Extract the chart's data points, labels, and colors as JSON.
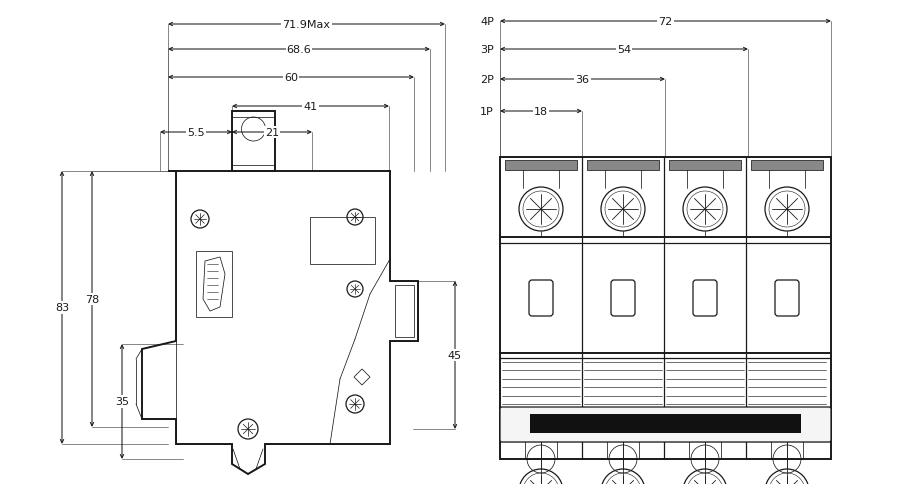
{
  "bg": "#ffffff",
  "lc": "#1a1a1a",
  "lc_dim": "#222222",
  "lc_thin": "#444444",
  "fig_w": 9.0,
  "fig_h": 4.85,
  "dpi": 100,
  "left_h_dims": [
    {
      "label": "71.9Max",
      "row": 0
    },
    {
      "label": "68.6",
      "row": 1
    },
    {
      "label": "60",
      "row": 2
    },
    {
      "label": "41",
      "row": 3
    },
    {
      "label": "21",
      "row": 4
    },
    {
      "label": "5.5",
      "row": 4,
      "left_side": true
    }
  ],
  "right_dims": [
    {
      "label": "72",
      "pole": "4P",
      "poles": 4
    },
    {
      "label": "54",
      "pole": "3P",
      "poles": 3
    },
    {
      "label": "36",
      "pole": "2P",
      "poles": 2
    },
    {
      "label": "18",
      "pole": "1P",
      "poles": 1
    }
  ]
}
